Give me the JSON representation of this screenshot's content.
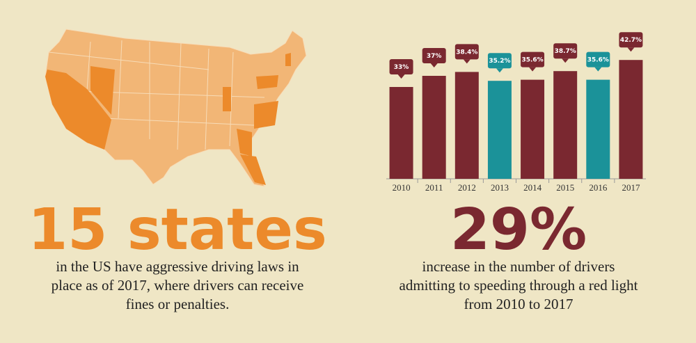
{
  "map_panel": {
    "headline": "15 states",
    "text_lines": [
      "in the US have aggressive driving laws in",
      "place as of 2017, where drivers can receive",
      "fines or penalties."
    ]
  },
  "chart_data": {
    "type": "bar",
    "categories": [
      "2010",
      "2011",
      "2012",
      "2013",
      "2014",
      "2015",
      "2016",
      "2017"
    ],
    "values": [
      33,
      37,
      38.4,
      35.2,
      35.6,
      38.7,
      35.6,
      42.7
    ],
    "value_labels": [
      "33%",
      "37%",
      "38.4%",
      "35.2%",
      "35.6%",
      "38.7%",
      "35.6%",
      "42.7%"
    ],
    "colors": [
      "#7a2830",
      "#7a2830",
      "#7a2830",
      "#1b9299",
      "#7a2830",
      "#7a2830",
      "#1b9299",
      "#7a2830"
    ],
    "ylim": [
      0,
      50
    ]
  },
  "chart_panel": {
    "headline": "29%",
    "text_lines": [
      "increase in the number of drivers",
      "admitting to speeding through a red light",
      "from 2010 to 2017"
    ]
  }
}
